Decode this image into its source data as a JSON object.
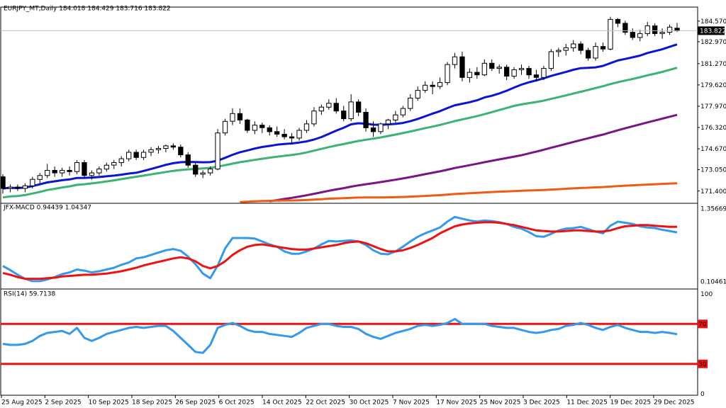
{
  "header": {
    "main": "EURJPY_MT,Daily  184.018 184.429 183.716 183.822",
    "macd": "JFX-MACD 0.94439 1.04347",
    "rsi": "RSI(14) 59.7138"
  },
  "colors": {
    "up_fill": "#ffffff",
    "down_fill": "#000000",
    "ma_fast": "#0a14d8",
    "ma_mid": "#3cb371",
    "ma_slow": "#7b1487",
    "ma_long": "#f05a14",
    "macd_line": "#3399ee",
    "signal_line": "#ee1111",
    "rsi_line": "#3399ee",
    "rsi_levels": "#ee1111"
  },
  "chart_data": [
    {
      "type": "candlestick",
      "symbol": "EURJPY_MT",
      "timeframe": "Daily",
      "ylim": [
        170.5,
        185.6
      ],
      "y_ticks": [
        "184.570",
        "183.822",
        "182.970",
        "181.270",
        "179.620",
        "177.970",
        "176.320",
        "174.670",
        "173.050",
        "171.400"
      ],
      "current_price": 183.822,
      "x_labels": [
        "25 Aug 2025",
        "2 Sep 2025",
        "10 Sep 2025",
        "18 Sep 2025",
        "26 Sep 2025",
        "6 Oct 2025",
        "14 Oct 2025",
        "22 Oct 2025",
        "30 Oct 2025",
        "7 Nov 2025",
        "17 Nov 2025",
        "25 Nov 2025",
        "3 Dec 2025",
        "11 Dec 2025",
        "19 Dec 2025",
        "29 Dec 2025"
      ],
      "candles": [
        [
          172.5,
          172.7,
          171.2,
          171.6
        ],
        [
          171.6,
          171.9,
          171.3,
          171.7
        ],
        [
          171.7,
          171.9,
          171.4,
          171.6
        ],
        [
          171.6,
          172.0,
          171.3,
          171.8
        ],
        [
          171.8,
          172.5,
          171.6,
          172.3
        ],
        [
          172.3,
          172.8,
          172.0,
          172.6
        ],
        [
          172.6,
          173.5,
          172.4,
          173.0
        ],
        [
          173.0,
          173.3,
          172.5,
          172.8
        ],
        [
          172.8,
          173.2,
          172.5,
          173.0
        ],
        [
          173.0,
          173.3,
          172.6,
          172.9
        ],
        [
          172.9,
          173.8,
          172.7,
          173.6
        ],
        [
          173.6,
          173.8,
          172.4,
          172.6
        ],
        [
          172.6,
          173.0,
          172.3,
          172.8
        ],
        [
          172.8,
          173.3,
          172.6,
          173.1
        ],
        [
          173.1,
          173.6,
          172.9,
          173.4
        ],
        [
          173.4,
          173.8,
          173.1,
          173.6
        ],
        [
          173.6,
          174.1,
          173.3,
          173.9
        ],
        [
          173.9,
          174.6,
          173.7,
          174.4
        ],
        [
          174.4,
          174.6,
          173.8,
          174.0
        ],
        [
          174.0,
          174.6,
          173.8,
          174.4
        ],
        [
          174.4,
          174.8,
          174.1,
          174.6
        ],
        [
          174.6,
          174.9,
          174.3,
          174.7
        ],
        [
          174.7,
          175.0,
          174.4,
          174.9
        ],
        [
          174.9,
          175.1,
          174.6,
          174.8
        ],
        [
          174.8,
          175.0,
          174.0,
          174.2
        ],
        [
          174.2,
          174.4,
          173.2,
          173.4
        ],
        [
          173.4,
          173.6,
          172.5,
          172.7
        ],
        [
          172.7,
          173.0,
          172.4,
          172.8
        ],
        [
          172.8,
          173.3,
          172.6,
          173.1
        ],
        [
          173.1,
          176.2,
          173.0,
          175.9
        ],
        [
          175.9,
          177.0,
          175.7,
          176.8
        ],
        [
          176.8,
          177.8,
          176.5,
          177.4
        ],
        [
          177.4,
          177.8,
          176.6,
          176.9
        ],
        [
          176.9,
          177.0,
          175.9,
          176.1
        ],
        [
          176.1,
          176.8,
          175.8,
          176.5
        ],
        [
          176.5,
          176.7,
          175.9,
          176.3
        ],
        [
          176.3,
          176.5,
          175.7,
          176.0
        ],
        [
          176.0,
          176.4,
          175.6,
          175.8
        ],
        [
          175.8,
          176.2,
          175.4,
          175.6
        ],
        [
          175.6,
          175.9,
          175.0,
          175.5
        ],
        [
          175.5,
          176.3,
          175.3,
          176.1
        ],
        [
          176.1,
          176.9,
          175.9,
          176.6
        ],
        [
          176.6,
          177.9,
          176.4,
          177.6
        ],
        [
          177.6,
          178.1,
          177.3,
          177.9
        ],
        [
          177.9,
          178.5,
          177.7,
          178.2
        ],
        [
          178.2,
          178.6,
          177.4,
          177.6
        ],
        [
          177.6,
          178.0,
          176.8,
          177.0
        ],
        [
          177.0,
          178.9,
          176.8,
          178.3
        ],
        [
          178.3,
          178.5,
          177.2,
          177.5
        ],
        [
          177.5,
          177.8,
          176.0,
          176.3
        ],
        [
          176.3,
          176.8,
          175.6,
          176.0
        ],
        [
          176.0,
          176.7,
          175.8,
          176.6
        ],
        [
          176.6,
          177.0,
          176.2,
          176.9
        ],
        [
          176.9,
          177.6,
          176.7,
          177.3
        ],
        [
          177.3,
          178.0,
          177.1,
          177.8
        ],
        [
          177.8,
          178.9,
          177.6,
          178.6
        ],
        [
          178.6,
          179.5,
          178.4,
          179.2
        ],
        [
          179.2,
          179.9,
          179.0,
          179.6
        ],
        [
          179.6,
          179.9,
          178.9,
          179.5
        ],
        [
          179.5,
          180.2,
          179.3,
          179.8
        ],
        [
          179.8,
          181.4,
          179.6,
          181.2
        ],
        [
          181.2,
          182.1,
          180.9,
          181.8
        ],
        [
          181.8,
          182.2,
          179.9,
          180.2
        ],
        [
          180.2,
          180.9,
          179.8,
          180.6
        ],
        [
          180.6,
          181.0,
          180.1,
          180.4
        ],
        [
          180.4,
          181.6,
          180.3,
          181.3
        ],
        [
          181.3,
          181.6,
          180.7,
          180.9
        ],
        [
          180.9,
          181.2,
          180.5,
          181.0
        ],
        [
          181.0,
          181.2,
          180.0,
          180.3
        ],
        [
          180.3,
          181.0,
          180.1,
          180.8
        ],
        [
          180.8,
          181.2,
          180.4,
          180.9
        ],
        [
          180.9,
          181.1,
          180.1,
          180.4
        ],
        [
          180.4,
          180.8,
          179.9,
          180.2
        ],
        [
          180.2,
          181.1,
          180.0,
          180.9
        ],
        [
          180.9,
          182.4,
          180.7,
          182.2
        ],
        [
          182.2,
          182.5,
          181.8,
          182.3
        ],
        [
          182.3,
          182.8,
          181.9,
          182.5
        ],
        [
          182.5,
          183.1,
          182.2,
          182.8
        ],
        [
          182.8,
          183.0,
          182.0,
          182.3
        ],
        [
          182.3,
          182.5,
          181.5,
          181.7
        ],
        [
          181.7,
          182.9,
          181.5,
          182.6
        ],
        [
          182.6,
          182.9,
          182.2,
          182.4
        ],
        [
          182.4,
          184.9,
          182.3,
          184.7
        ],
        [
          184.7,
          184.8,
          184.1,
          184.4
        ],
        [
          184.4,
          184.6,
          183.5,
          183.7
        ],
        [
          183.7,
          184.0,
          183.1,
          183.3
        ],
        [
          183.3,
          183.9,
          183.0,
          183.6
        ],
        [
          183.6,
          184.5,
          183.4,
          184.2
        ],
        [
          184.2,
          184.4,
          183.4,
          183.6
        ],
        [
          183.6,
          184.0,
          183.2,
          183.7
        ],
        [
          183.7,
          184.3,
          183.5,
          184.1
        ],
        [
          184.018,
          184.429,
          183.716,
          183.822
        ]
      ],
      "moving_averages": [
        {
          "start": 171.6,
          "end": 182.76
        },
        {
          "start": 170.9,
          "end": 180.95
        },
        {
          "start": 166.8,
          "end": 177.3
        },
        {
          "start": 169.8,
          "end": 172.0
        }
      ]
    },
    {
      "type": "line",
      "indicator": "JFX-MACD",
      "ylim": [
        0.0,
        1.42
      ],
      "y_ticks": [
        "1.35669",
        "0.10461"
      ],
      "series": [
        {
          "values": [
            0.37,
            0.3,
            0.22,
            0.15,
            0.11,
            0.11,
            0.14,
            0.18,
            0.23,
            0.26,
            0.31,
            0.29,
            0.26,
            0.28,
            0.31,
            0.34,
            0.39,
            0.43,
            0.5,
            0.52,
            0.56,
            0.6,
            0.64,
            0.66,
            0.63,
            0.53,
            0.4,
            0.24,
            0.16,
            0.38,
            0.67,
            0.85,
            0.85,
            0.85,
            0.84,
            0.79,
            0.74,
            0.7,
            0.62,
            0.58,
            0.58,
            0.62,
            0.67,
            0.74,
            0.8,
            0.79,
            0.8,
            0.81,
            0.79,
            0.73,
            0.64,
            0.58,
            0.57,
            0.62,
            0.7,
            0.79,
            0.87,
            0.93,
            0.98,
            1.03,
            1.13,
            1.21,
            1.18,
            1.15,
            1.13,
            1.15,
            1.14,
            1.12,
            1.09,
            1.04,
            1.01,
            0.95,
            0.88,
            0.87,
            0.92,
            0.98,
            1.01,
            1.02,
            1.04,
            1.0,
            0.96,
            0.93,
            1.06,
            1.13,
            1.11,
            1.09,
            1.05,
            1.03,
            1.02,
            0.99,
            0.97,
            0.944
          ]
        },
        {
          "values": [
            0.25,
            0.22,
            0.18,
            0.15,
            0.15,
            0.15,
            0.16,
            0.17,
            0.19,
            0.2,
            0.21,
            0.22,
            0.22,
            0.23,
            0.24,
            0.26,
            0.28,
            0.31,
            0.34,
            0.38,
            0.41,
            0.44,
            0.47,
            0.5,
            0.52,
            0.5,
            0.45,
            0.37,
            0.33,
            0.37,
            0.45,
            0.56,
            0.64,
            0.7,
            0.73,
            0.74,
            0.72,
            0.7,
            0.68,
            0.66,
            0.65,
            0.65,
            0.67,
            0.69,
            0.71,
            0.73,
            0.76,
            0.78,
            0.79,
            0.76,
            0.71,
            0.66,
            0.62,
            0.62,
            0.64,
            0.68,
            0.73,
            0.79,
            0.85,
            0.93,
            0.99,
            1.05,
            1.08,
            1.1,
            1.11,
            1.12,
            1.12,
            1.11,
            1.09,
            1.07,
            1.04,
            1.01,
            0.98,
            0.97,
            0.96,
            0.96,
            0.97,
            0.98,
            0.98,
            0.97,
            0.96,
            0.96,
            0.98,
            1.02,
            1.05,
            1.06,
            1.07,
            1.07,
            1.06,
            1.05,
            1.04,
            1.043
          ]
        }
      ]
    },
    {
      "type": "line",
      "indicator": "RSI(14)",
      "ylim": [
        0,
        100
      ],
      "y_ticks": [
        "100",
        "70",
        "30",
        "0"
      ],
      "levels": [
        70,
        30
      ],
      "series": [
        {
          "values": [
            50,
            49,
            49,
            50,
            53,
            58,
            61,
            62,
            63,
            60,
            66,
            56,
            53,
            56,
            60,
            62,
            64,
            66,
            67,
            66,
            67,
            68,
            68,
            63,
            56,
            49,
            42,
            41,
            49,
            66,
            69,
            71,
            68,
            64,
            62,
            62,
            60,
            59,
            58,
            57,
            61,
            66,
            68,
            70,
            70,
            68,
            67,
            67,
            65,
            60,
            57,
            55,
            58,
            61,
            63,
            65,
            68,
            69,
            68,
            69,
            71,
            75,
            70,
            70,
            70,
            70,
            68,
            67,
            66,
            66,
            64,
            62,
            61,
            62,
            64,
            65,
            68,
            69,
            71,
            69,
            66,
            64,
            67,
            69,
            66,
            64,
            62,
            62,
            61,
            62,
            61,
            59.7
          ]
        }
      ]
    }
  ]
}
